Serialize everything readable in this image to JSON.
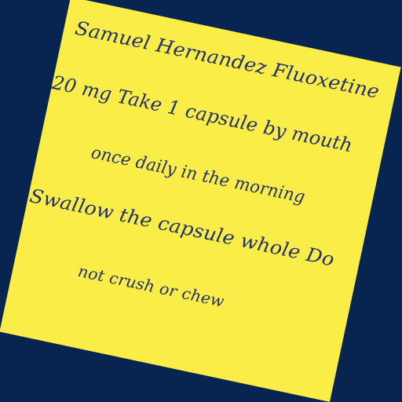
{
  "label_lines": [
    "Samuel Hernandez Fluoxetine",
    "20 mg Take 1 capsule by mouth",
    "once daily in the morning",
    "Swallow the capsule whole Do",
    "not crush or chew"
  ],
  "colors": {
    "background": "#082552",
    "paper": "#fbed48",
    "text": "#21306f"
  }
}
